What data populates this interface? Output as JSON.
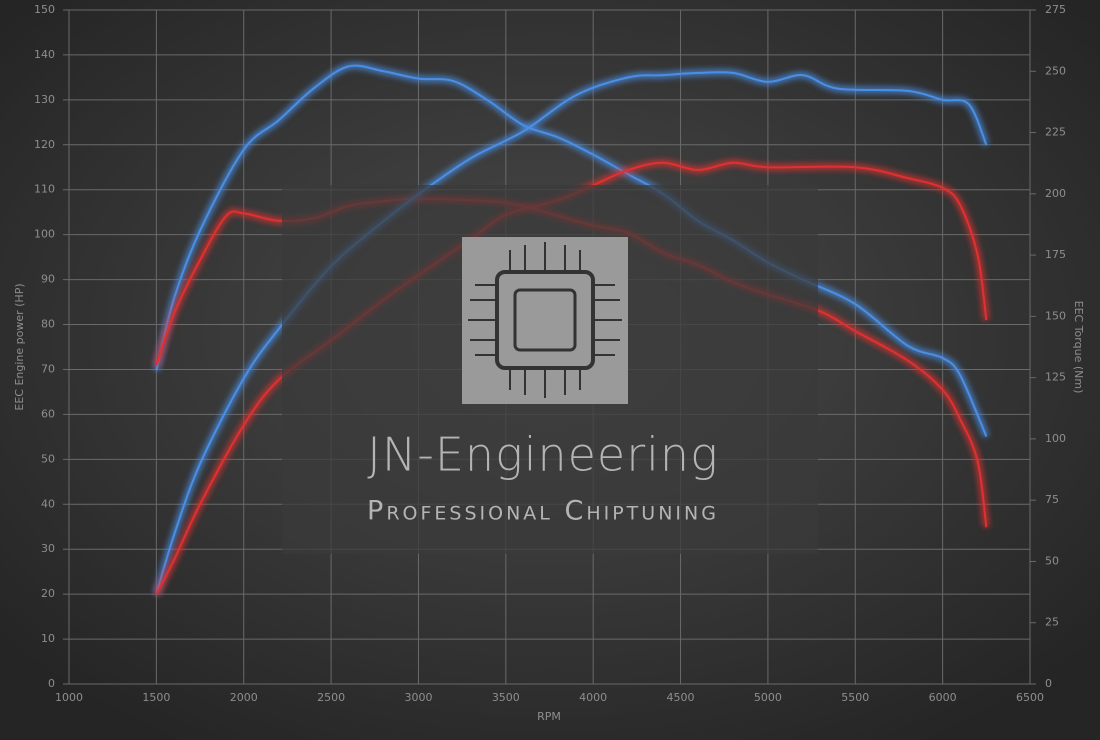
{
  "chart_data": {
    "type": "line",
    "xlabel": "RPM",
    "ylabel": "EEC Engine power (HP)",
    "y2label": "EEC Torque (Nm)",
    "annotations": [
      "JN-Engineering",
      "Professional Chiptuning"
    ],
    "xlim": [
      1000,
      6500
    ],
    "xticks": [
      1000,
      1500,
      2000,
      2500,
      3000,
      3500,
      4000,
      4500,
      5000,
      5500,
      6000,
      6500
    ],
    "ylim": [
      0,
      150
    ],
    "yticks": [
      0,
      10,
      20,
      30,
      40,
      50,
      60,
      70,
      80,
      90,
      100,
      110,
      120,
      130,
      140,
      150
    ],
    "y2lim": [
      0,
      275
    ],
    "y2ticks": [
      0,
      25,
      50,
      75,
      100,
      125,
      150,
      175,
      200,
      225,
      250,
      275
    ],
    "grid": true,
    "series": [
      {
        "color": "#4a8fe6",
        "axis": "y2",
        "x": [
          1500,
          1600,
          1750,
          2000,
          2200,
          2400,
          2600,
          2800,
          3000,
          3200,
          3400,
          3600,
          3800,
          4000,
          4200,
          4400,
          4600,
          4800,
          5000,
          5200,
          5500,
          5800,
          6000,
          6100,
          6250
        ],
        "values": [
          128,
          157,
          185,
          218,
          230,
          243,
          252,
          250,
          247,
          246,
          238,
          228,
          223,
          216,
          208,
          200,
          189,
          181,
          172,
          165,
          155,
          138,
          133,
          126,
          101
        ]
      },
      {
        "color": "#e03030",
        "axis": "y2",
        "x": [
          1500,
          1600,
          1750,
          1900,
          2000,
          2200,
          2400,
          2600,
          2800,
          3000,
          3400,
          3600,
          3800,
          4000,
          4200,
          4400,
          4600,
          4800,
          5000,
          5300,
          5500,
          5800,
          6000,
          6100,
          6200,
          6250
        ],
        "values": [
          130,
          151,
          173,
          191,
          192,
          189,
          190,
          195,
          197,
          198,
          197,
          195,
          191,
          187,
          184,
          176,
          171,
          164,
          159,
          152,
          144,
          132,
          120,
          108,
          91,
          64
        ]
      },
      {
        "color": "#4a8fe6",
        "x": [
          1500,
          1600,
          1750,
          2000,
          2200,
          2500,
          2800,
          3000,
          3300,
          3600,
          3900,
          4200,
          4400,
          4600,
          4800,
          5000,
          5200,
          5400,
          5800,
          6000,
          6150,
          6250
        ],
        "values": [
          20,
          33,
          49,
          68,
          79,
          93,
          103,
          109,
          117,
          123,
          131,
          135,
          135.5,
          136,
          136,
          134,
          135.5,
          132.5,
          132,
          130,
          129,
          120
        ]
      },
      {
        "color": "#e03030",
        "x": [
          1500,
          1600,
          1750,
          2000,
          2200,
          2500,
          2800,
          3000,
          3300,
          3500,
          3800,
          4000,
          4200,
          4400,
          4600,
          4800,
          5000,
          5500,
          5800,
          6000,
          6100,
          6200,
          6250
        ],
        "values": [
          20,
          27.5,
          40,
          57.6,
          67.7,
          76.5,
          85.5,
          91,
          99,
          104.4,
          107.7,
          111,
          114.4,
          116,
          114.4,
          116,
          115,
          115,
          112.6,
          110.4,
          106.6,
          95.5,
          81
        ]
      }
    ]
  }
}
